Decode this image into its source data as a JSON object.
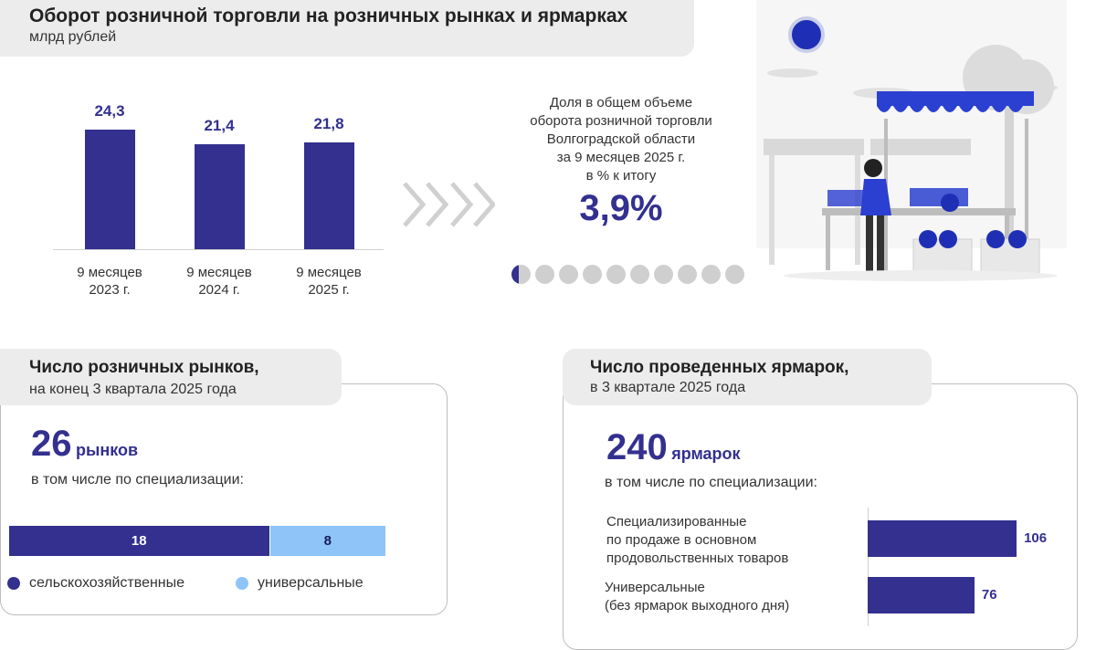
{
  "header": {
    "title": "Оборот розничной торговли на розничных рынках и ярмарках",
    "subtitle": "млрд рублей"
  },
  "chart_data": [
    {
      "type": "bar",
      "categories": [
        "9 месяцев 2023 г.",
        "9 месяцев 2024 г.",
        "9 месяцев 2025 г."
      ],
      "category_lines": [
        [
          "9 месяцев",
          "2023 г."
        ],
        [
          "9 месяцев",
          "2024 г."
        ],
        [
          "9 месяцев",
          "2025 г."
        ]
      ],
      "values": [
        24.3,
        21.4,
        21.8
      ],
      "value_labels": [
        "24,3",
        "21,4",
        "21,8"
      ],
      "color": "#33308f",
      "ylim": [
        0,
        26
      ],
      "grid": false
    },
    {
      "type": "bar",
      "stacked": true,
      "orientation": "horizontal",
      "series": [
        {
          "name": "сельскохозяйственные",
          "values": [
            18
          ],
          "label": "18",
          "color": "#33308f"
        },
        {
          "name": "универсальные",
          "values": [
            8
          ],
          "label": "8",
          "color": "#8ec4f7"
        }
      ]
    },
    {
      "type": "bar",
      "orientation": "horizontal",
      "categories": [
        "Специализированные по продаже в основном продовольственных товаров",
        "Универсальные (без ярмарок выходного дня)"
      ],
      "values": [
        106,
        76
      ],
      "value_labels": [
        "106",
        "76"
      ],
      "color": "#33308f",
      "xlim": [
        0,
        130
      ]
    }
  ],
  "share": {
    "lines": [
      "Доля в общем объеме",
      "оборота розничной торговли",
      "Волгоградской области",
      "за 9 месяцев 2025 г.",
      "в % к итогу"
    ],
    "value_label": "3,9%",
    "value": 3.9,
    "dots_total": 10,
    "dot_fill_fraction": 0.39,
    "dot_color": "#33308f",
    "dot_empty_color": "#cfcfcf"
  },
  "markets": {
    "title": "Число розничных рынков,",
    "subtitle": "на конец 3 квартала 2025 года",
    "count": "26",
    "unit": "рынков",
    "note": "в том числе по специализации:"
  },
  "fairs": {
    "title": "Число проведенных ярмарок,",
    "subtitle": "в 3 квартале 2025 года",
    "count": "240",
    "unit": "ярмарок",
    "note": "в том числе по специализации:",
    "cat_lines": [
      [
        "Специализированные",
        "по продаже в основном",
        "продовольственных товаров"
      ],
      [
        "Универсальные",
        "(без ярмарок выходного дня)"
      ]
    ]
  },
  "illustration": {
    "name": "market-stall-illustration",
    "sun_color": "#1f2fb5",
    "accent_color": "#2b3fd0",
    "gray": "#d9d9d9"
  }
}
